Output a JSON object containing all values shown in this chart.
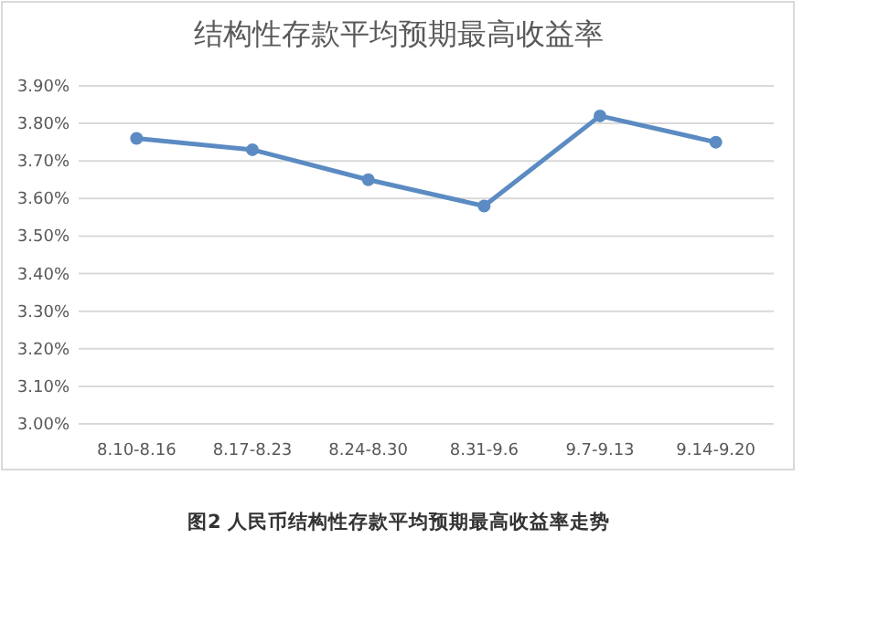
{
  "chart_data": {
    "type": "line",
    "title": "结构性存款平均预期最高收益率",
    "categories": [
      "8.10-8.16",
      "8.17-8.23",
      "8.24-8.30",
      "8.31-9.6",
      "9.7-9.13",
      "9.14-9.20"
    ],
    "values": [
      3.76,
      3.73,
      3.65,
      3.58,
      3.82,
      3.75
    ],
    "color": "#5b8bc2",
    "marker": "circle",
    "grid": "y",
    "ylim": [
      3.0,
      3.9
    ],
    "yticks": [
      {
        "value": 3.0,
        "label": "3.00%"
      },
      {
        "value": 3.1,
        "label": "3.10%"
      },
      {
        "value": 3.2,
        "label": "3.20%"
      },
      {
        "value": 3.3,
        "label": "3.30%"
      },
      {
        "value": 3.4,
        "label": "3.40%"
      },
      {
        "value": 3.5,
        "label": "3.50%"
      },
      {
        "value": 3.6,
        "label": "3.60%"
      },
      {
        "value": 3.7,
        "label": "3.70%"
      },
      {
        "value": 3.8,
        "label": "3.80%"
      },
      {
        "value": 3.9,
        "label": "3.90%"
      }
    ],
    "annotations": [
      "图2 人民币结构性存款平均预期最高收益率走势"
    ]
  }
}
